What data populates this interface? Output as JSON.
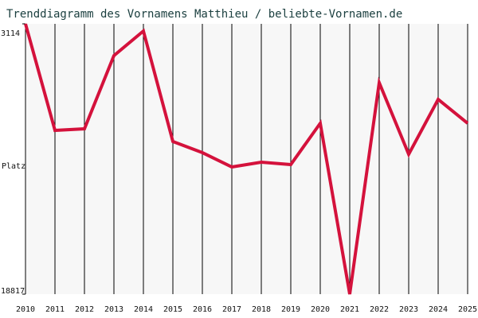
{
  "chart_data": {
    "type": "line",
    "title": "Trenddiagramm des Vornamens Matthieu / beliebte-Vornamen.de",
    "y_label": "Platz",
    "x": [
      2010,
      2011,
      2012,
      2013,
      2014,
      2015,
      2016,
      2017,
      2018,
      2019,
      2020,
      2021,
      2022,
      2023,
      2024,
      2025
    ],
    "series": [
      {
        "name": "Matthieu",
        "color": "#d4123c",
        "values": [
          3114,
          9303,
          9211,
          4962,
          3530,
          9950,
          10597,
          11428,
          11151,
          11290,
          8888,
          18817,
          6532,
          10689,
          7502,
          8888
        ]
      }
    ],
    "xlim": [
      2010,
      2025
    ],
    "xticks": [
      2010,
      2011,
      2012,
      2013,
      2014,
      2015,
      2016,
      2017,
      2018,
      2019,
      2020,
      2021,
      2022,
      2023,
      2024,
      2025
    ],
    "ylim": [
      18817,
      3114
    ],
    "yticks": [
      3114,
      18817
    ],
    "grid": true
  }
}
